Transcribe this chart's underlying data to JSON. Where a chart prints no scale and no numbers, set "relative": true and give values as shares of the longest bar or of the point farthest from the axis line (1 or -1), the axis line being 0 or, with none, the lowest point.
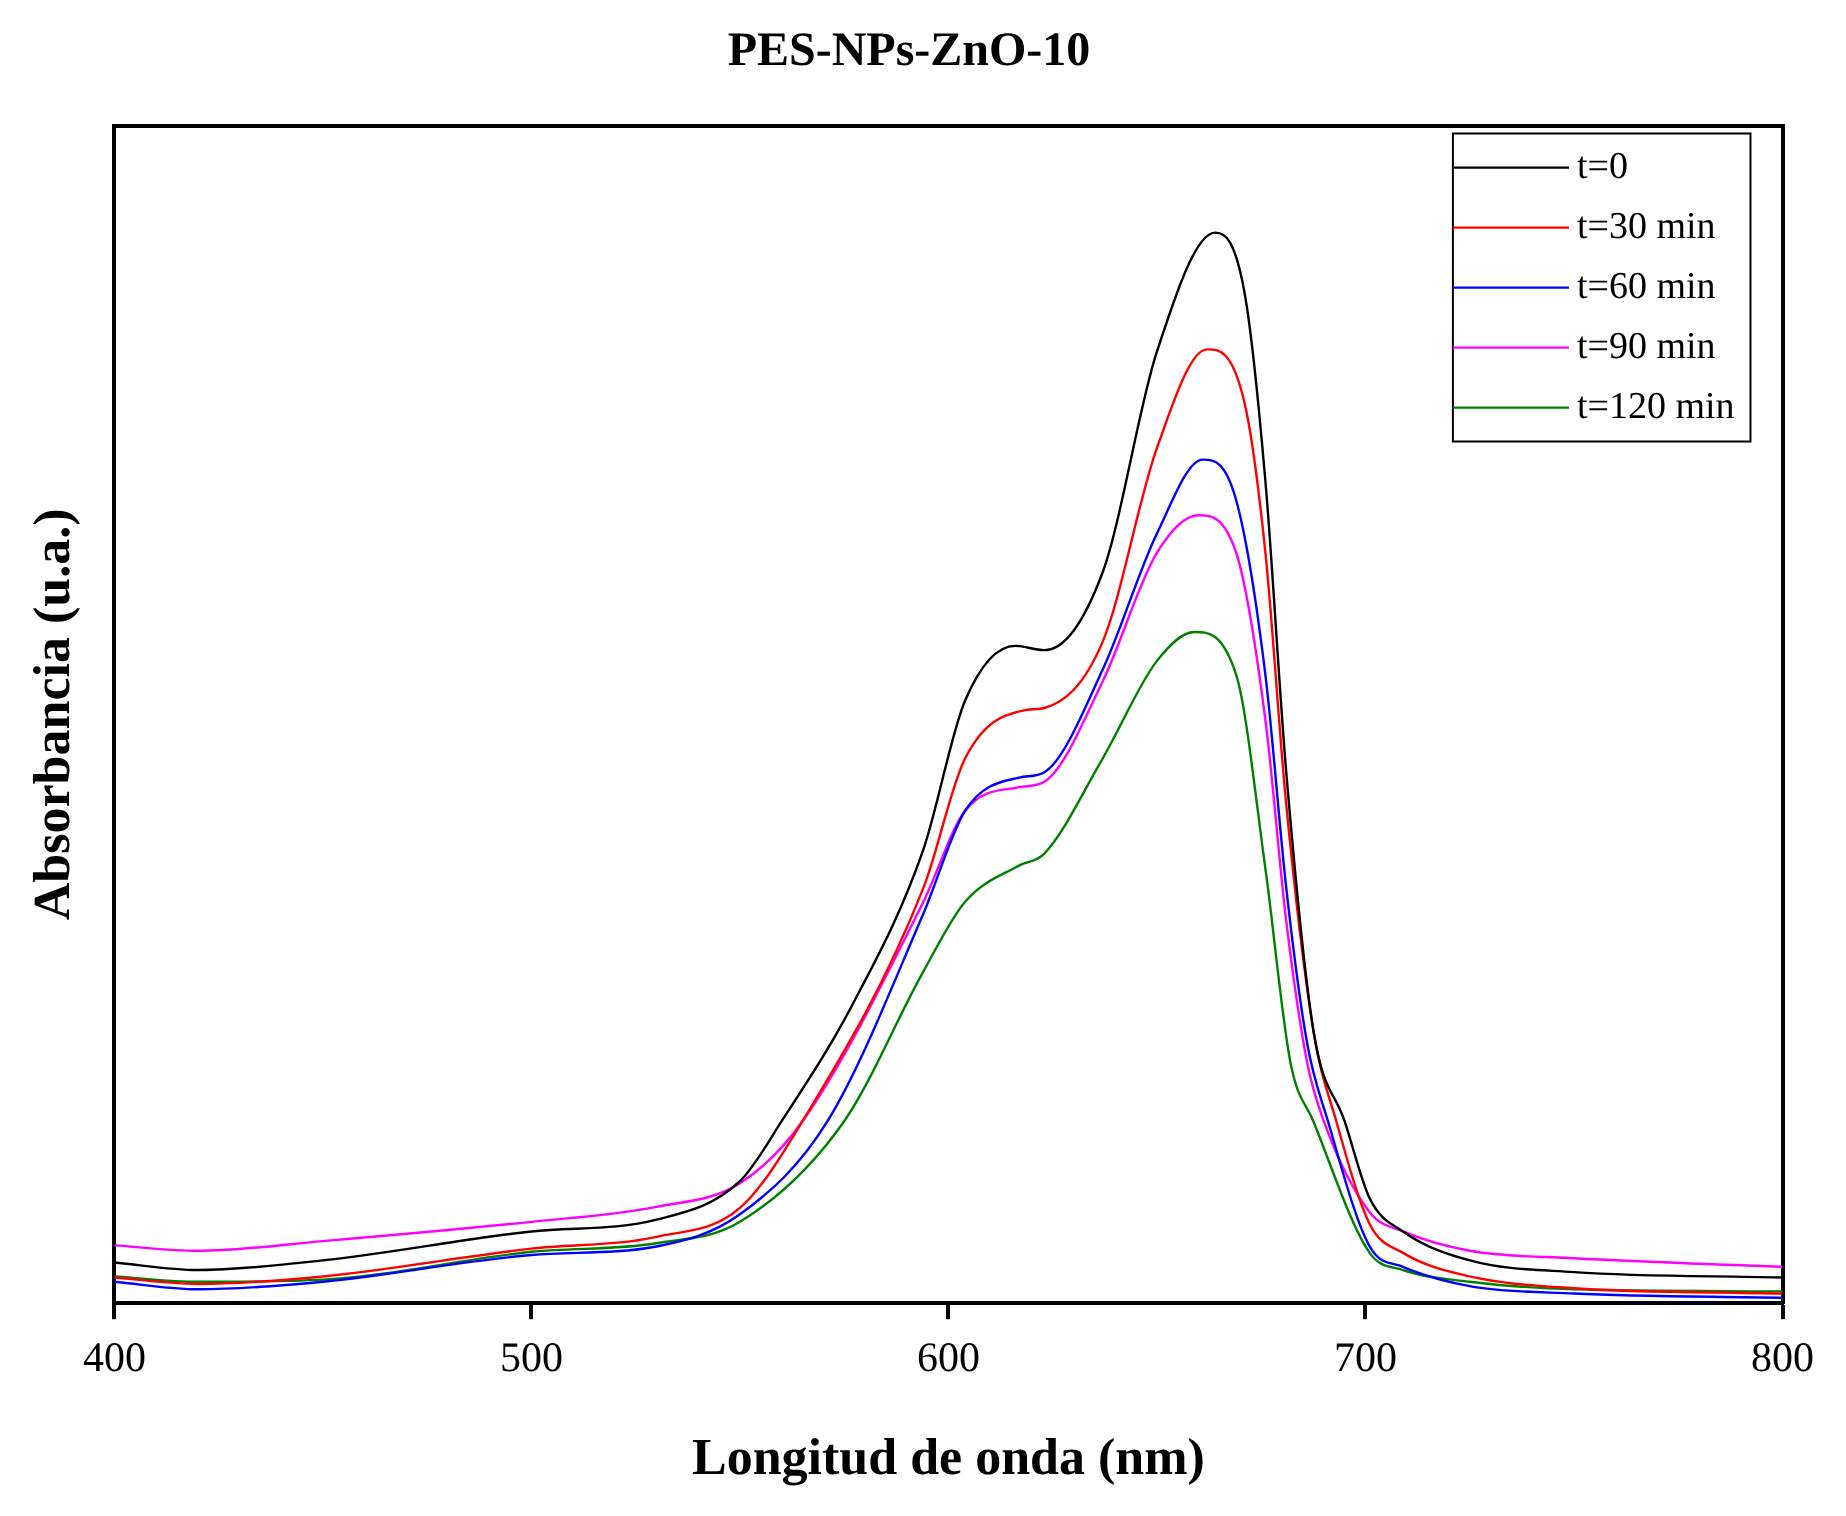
{
  "chart_data": {
    "type": "line",
    "title": "PES-NPs-ZnO-10",
    "xlabel": "Longitud de onda (nm)",
    "ylabel": "Absorbancia (u.a.)",
    "relative": true,
    "xlim": [
      400,
      800
    ],
    "xticks": [
      400,
      500,
      600,
      700,
      800
    ],
    "grid": false,
    "legend": "top right",
    "marker": "none",
    "line_style": "solid",
    "series": [
      {
        "name": "t=0",
        "color": "#000000",
        "x": [
          400,
          420,
          450,
          500,
          530,
          550,
          560,
          577,
          594,
          604,
          616,
          623,
          637,
          650,
          664,
          671,
          676,
          681,
          687.5,
          695,
          701,
          709,
          725,
          750,
          800
        ],
        "values": [
          0.038,
          0.031,
          0.04,
          0.067,
          0.078,
          0.114,
          0.17,
          0.279,
          0.424,
          0.563,
          0.614,
          0.61,
          0.683,
          0.889,
          1.0,
          0.944,
          0.768,
          0.496,
          0.255,
          0.17,
          0.098,
          0.067,
          0.04,
          0.029,
          0.024
        ]
      },
      {
        "name": "t=30 min",
        "color": "#ff0000",
        "x": [
          400,
          420,
          450,
          500,
          530,
          550,
          565,
          594,
          604,
          618.5,
          623,
          637,
          650,
          662,
          671,
          676,
          681,
          687.5,
          693,
          701,
          709,
          725,
          750,
          800
        ],
        "values": [
          0.024,
          0.018,
          0.025,
          0.051,
          0.062,
          0.089,
          0.17,
          0.388,
          0.509,
          0.554,
          0.556,
          0.618,
          0.799,
          0.891,
          0.841,
          0.701,
          0.466,
          0.255,
          0.17,
          0.074,
          0.047,
          0.025,
          0.014,
          0.009
        ]
      },
      {
        "name": "t=60 min",
        "color": "#0000ff",
        "x": [
          400,
          420,
          450,
          500,
          530,
          550,
          571,
          594,
          604,
          617,
          623,
          637,
          650,
          661,
          669,
          676,
          681,
          686,
          691,
          701,
          709,
          725,
          750,
          800
        ],
        "values": [
          0.02,
          0.013,
          0.02,
          0.045,
          0.053,
          0.083,
          0.17,
          0.364,
          0.46,
          0.491,
          0.496,
          0.592,
          0.719,
          0.788,
          0.75,
          0.587,
          0.388,
          0.243,
          0.17,
          0.053,
          0.034,
          0.016,
          0.009,
          0.005
        ]
      },
      {
        "name": "t=90 min",
        "color": "#ff00ff",
        "x": [
          400,
          420,
          450,
          500,
          530,
          550,
          565,
          594,
          604,
          617,
          623,
          637,
          650,
          660,
          669,
          676,
          681,
          686,
          690,
          701,
          709,
          725,
          750,
          800
        ],
        "values": [
          0.054,
          0.049,
          0.058,
          0.076,
          0.09,
          0.112,
          0.17,
          0.375,
          0.46,
          0.482,
          0.487,
          0.581,
          0.701,
          0.736,
          0.701,
          0.545,
          0.357,
          0.225,
          0.17,
          0.085,
          0.067,
          0.049,
          0.042,
          0.034
        ]
      },
      {
        "name": "t=120 min",
        "color": "#008000",
        "x": [
          400,
          420,
          450,
          500,
          530,
          550,
          575,
          594,
          604,
          617,
          623,
          637,
          650,
          659,
          669,
          676,
          682,
          687.5,
          701,
          709,
          725,
          750,
          800
        ],
        "values": [
          0.025,
          0.02,
          0.022,
          0.048,
          0.056,
          0.076,
          0.17,
          0.31,
          0.375,
          0.409,
          0.42,
          0.509,
          0.6,
          0.627,
          0.587,
          0.406,
          0.225,
          0.17,
          0.047,
          0.031,
          0.02,
          0.013,
          0.011
        ]
      }
    ]
  }
}
